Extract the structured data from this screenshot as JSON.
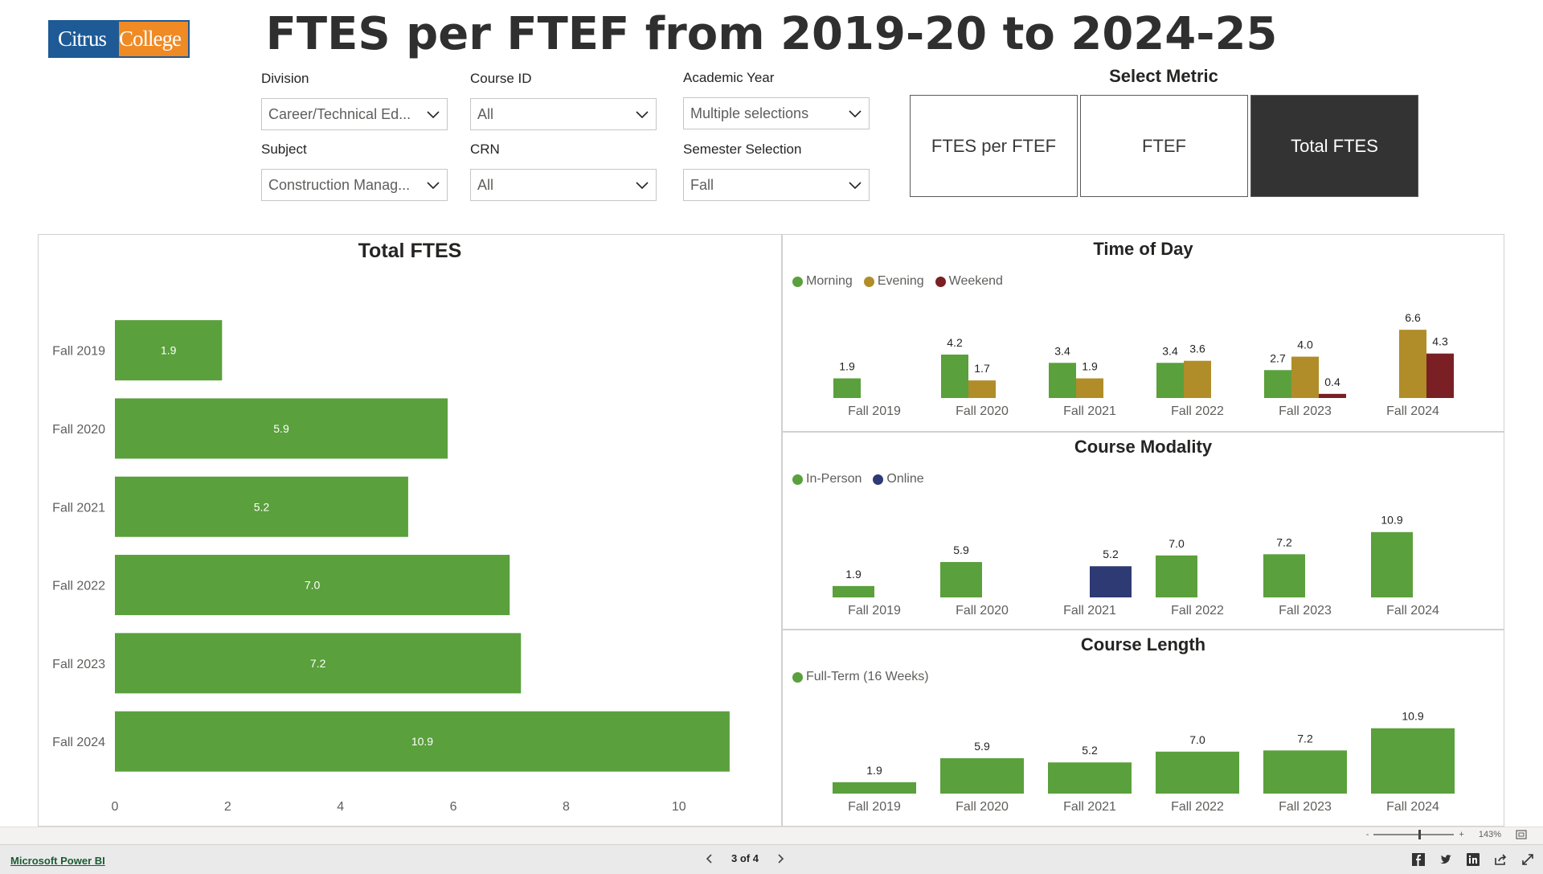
{
  "logo": {
    "part1": "Citrus",
    "part2": "College"
  },
  "title": "FTES per FTEF from 2019-20 to 2024-25",
  "slicers": {
    "division": {
      "label": "Division",
      "value": "Career/Technical Ed..."
    },
    "course_id": {
      "label": "Course ID",
      "value": "All"
    },
    "academic_year": {
      "label": "Academic Year",
      "value": "Multiple selections"
    },
    "subject": {
      "label": "Subject",
      "value": "Construction Manag..."
    },
    "crn": {
      "label": "CRN",
      "value": "All"
    },
    "semester": {
      "label": "Semester Selection",
      "value": "Fall"
    }
  },
  "metric": {
    "title": "Select Metric",
    "options": [
      "FTES per FTEF",
      "FTEF",
      "Total FTES"
    ],
    "selected": "Total FTES"
  },
  "colors": {
    "green": "#5aa03c",
    "gold": "#b08d28",
    "maroon": "#7a1f24",
    "navy": "#2d3a73"
  },
  "chart_data": [
    {
      "id": "total",
      "type": "bar",
      "orientation": "horizontal",
      "title": "Total FTES",
      "categories": [
        "Fall 2019",
        "Fall 2020",
        "Fall 2021",
        "Fall 2022",
        "Fall 2023",
        "Fall 2024"
      ],
      "values": [
        1.9,
        5.9,
        5.2,
        7.0,
        7.2,
        10.9
      ],
      "labels": [
        "1.9",
        "5.9",
        "5.2",
        "7.0",
        "7.2",
        "10.9"
      ],
      "xlim": [
        0,
        11.5
      ],
      "xticks": [
        "0",
        "2",
        "4",
        "6",
        "8",
        "10"
      ],
      "xtick_values": [
        0,
        2,
        4,
        6,
        8,
        10
      ]
    },
    {
      "id": "time",
      "type": "bar",
      "title": "Time of Day",
      "categories": [
        "Fall 2019",
        "Fall 2020",
        "Fall 2021",
        "Fall 2022",
        "Fall 2023",
        "Fall 2024"
      ],
      "series": [
        {
          "name": "Morning",
          "color": "#5aa03c",
          "values": [
            1.9,
            4.2,
            3.4,
            3.4,
            2.7,
            null
          ],
          "labels": [
            "1.9",
            "4.2",
            "3.4",
            "3.4",
            "2.7",
            ""
          ]
        },
        {
          "name": "Evening",
          "color": "#b08d28",
          "values": [
            null,
            1.7,
            1.9,
            3.6,
            4.0,
            6.6
          ],
          "labels": [
            "",
            "1.7",
            "1.9",
            "3.6",
            "4.0",
            "6.6"
          ]
        },
        {
          "name": "Weekend",
          "color": "#7a1f24",
          "values": [
            null,
            null,
            null,
            null,
            0.4,
            4.3
          ],
          "labels": [
            "",
            "",
            "",
            "",
            "0.4",
            "4.3"
          ]
        }
      ],
      "ylim": [
        0,
        7
      ]
    },
    {
      "id": "modality",
      "type": "bar",
      "title": "Course Modality",
      "categories": [
        "Fall 2019",
        "Fall 2020",
        "Fall 2021",
        "Fall 2022",
        "Fall 2023",
        "Fall 2024"
      ],
      "series": [
        {
          "name": "In-Person",
          "color": "#5aa03c",
          "values": [
            1.9,
            5.9,
            null,
            7.0,
            7.2,
            10.9
          ],
          "labels": [
            "1.9",
            "5.9",
            "",
            "7.0",
            "7.2",
            "10.9"
          ]
        },
        {
          "name": "Online",
          "color": "#2d3a73",
          "values": [
            null,
            null,
            5.2,
            null,
            null,
            null
          ],
          "labels": [
            "",
            "",
            "5.2",
            "",
            "",
            ""
          ]
        }
      ],
      "ylim": [
        0,
        11
      ]
    },
    {
      "id": "length",
      "type": "bar",
      "title": "Course Length",
      "categories": [
        "Fall 2019",
        "Fall 2020",
        "Fall 2021",
        "Fall 2022",
        "Fall 2023",
        "Fall 2024"
      ],
      "series": [
        {
          "name": "Full-Term (16 Weeks)",
          "color": "#5aa03c",
          "values": [
            1.9,
            5.9,
            5.2,
            7.0,
            7.2,
            10.9
          ],
          "labels": [
            "1.9",
            "5.9",
            "5.2",
            "7.0",
            "7.2",
            "10.9"
          ]
        }
      ],
      "ylim": [
        0,
        11
      ]
    }
  ],
  "footer": {
    "brand_link": "Microsoft Power BI",
    "page_indicator": "3 of 4",
    "zoom_level": "143%",
    "zoom_minus": "-",
    "zoom_plus": "+"
  },
  "icons": {
    "prev": "chevron-left-icon",
    "next": "chevron-right-icon",
    "facebook": "facebook-icon",
    "twitter": "twitter-icon",
    "linkedin": "linkedin-icon",
    "share": "share-icon",
    "fullscreen": "fullscreen-icon",
    "fit": "fit-to-page-icon"
  }
}
